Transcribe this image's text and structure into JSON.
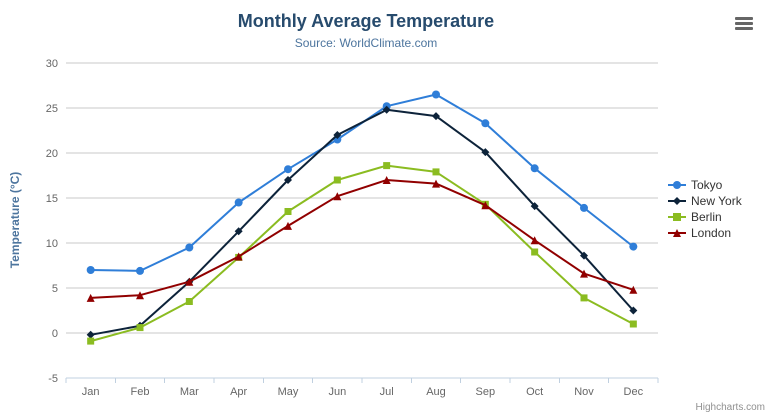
{
  "header": {
    "title": "Monthly Average Temperature",
    "subtitle": "Source: WorldClimate.com"
  },
  "credits": {
    "label": "Highcharts.com"
  },
  "menu": {
    "icon": "hamburger-icon"
  },
  "colors": {
    "title_text": "#274b6d",
    "subtitle_text": "#4d759e",
    "axis_title_text": "#4d759e",
    "axis_label_text": "#666666",
    "grid_line": "#c8c8c8",
    "axis_line": "#c0d0e0",
    "legend_text": "#333333",
    "credits_text": "#909090",
    "menu_icon": "#666666"
  },
  "chart_data": {
    "type": "line",
    "title": "Monthly Average Temperature",
    "subtitle": "Source: WorldClimate.com",
    "categories": [
      "Jan",
      "Feb",
      "Mar",
      "Apr",
      "May",
      "Jun",
      "Jul",
      "Aug",
      "Sep",
      "Oct",
      "Nov",
      "Dec"
    ],
    "xlabel": "",
    "ylabel": "Temperature (°C)",
    "ylim": [
      -5,
      30
    ],
    "ytick_step": 5,
    "grid": true,
    "legend_position": "right",
    "series": [
      {
        "name": "Tokyo",
        "color": "#2f7ed8",
        "marker": "circle",
        "values": [
          7.0,
          6.9,
          9.5,
          14.5,
          18.2,
          21.5,
          25.2,
          26.5,
          23.3,
          18.3,
          13.9,
          9.6
        ]
      },
      {
        "name": "New York",
        "color": "#0d233a",
        "marker": "diamond",
        "values": [
          -0.2,
          0.8,
          5.7,
          11.3,
          17.0,
          22.0,
          24.8,
          24.1,
          20.1,
          14.1,
          8.6,
          2.5
        ]
      },
      {
        "name": "Berlin",
        "color": "#8bbc21",
        "marker": "square",
        "values": [
          -0.9,
          0.6,
          3.5,
          8.4,
          13.5,
          17.0,
          18.6,
          17.9,
          14.3,
          9.0,
          3.9,
          1.0
        ]
      },
      {
        "name": "London",
        "color": "#910000",
        "marker": "triangle",
        "values": [
          3.9,
          4.2,
          5.7,
          8.5,
          11.9,
          15.2,
          17.0,
          16.6,
          14.2,
          10.3,
          6.6,
          4.8
        ]
      }
    ]
  }
}
